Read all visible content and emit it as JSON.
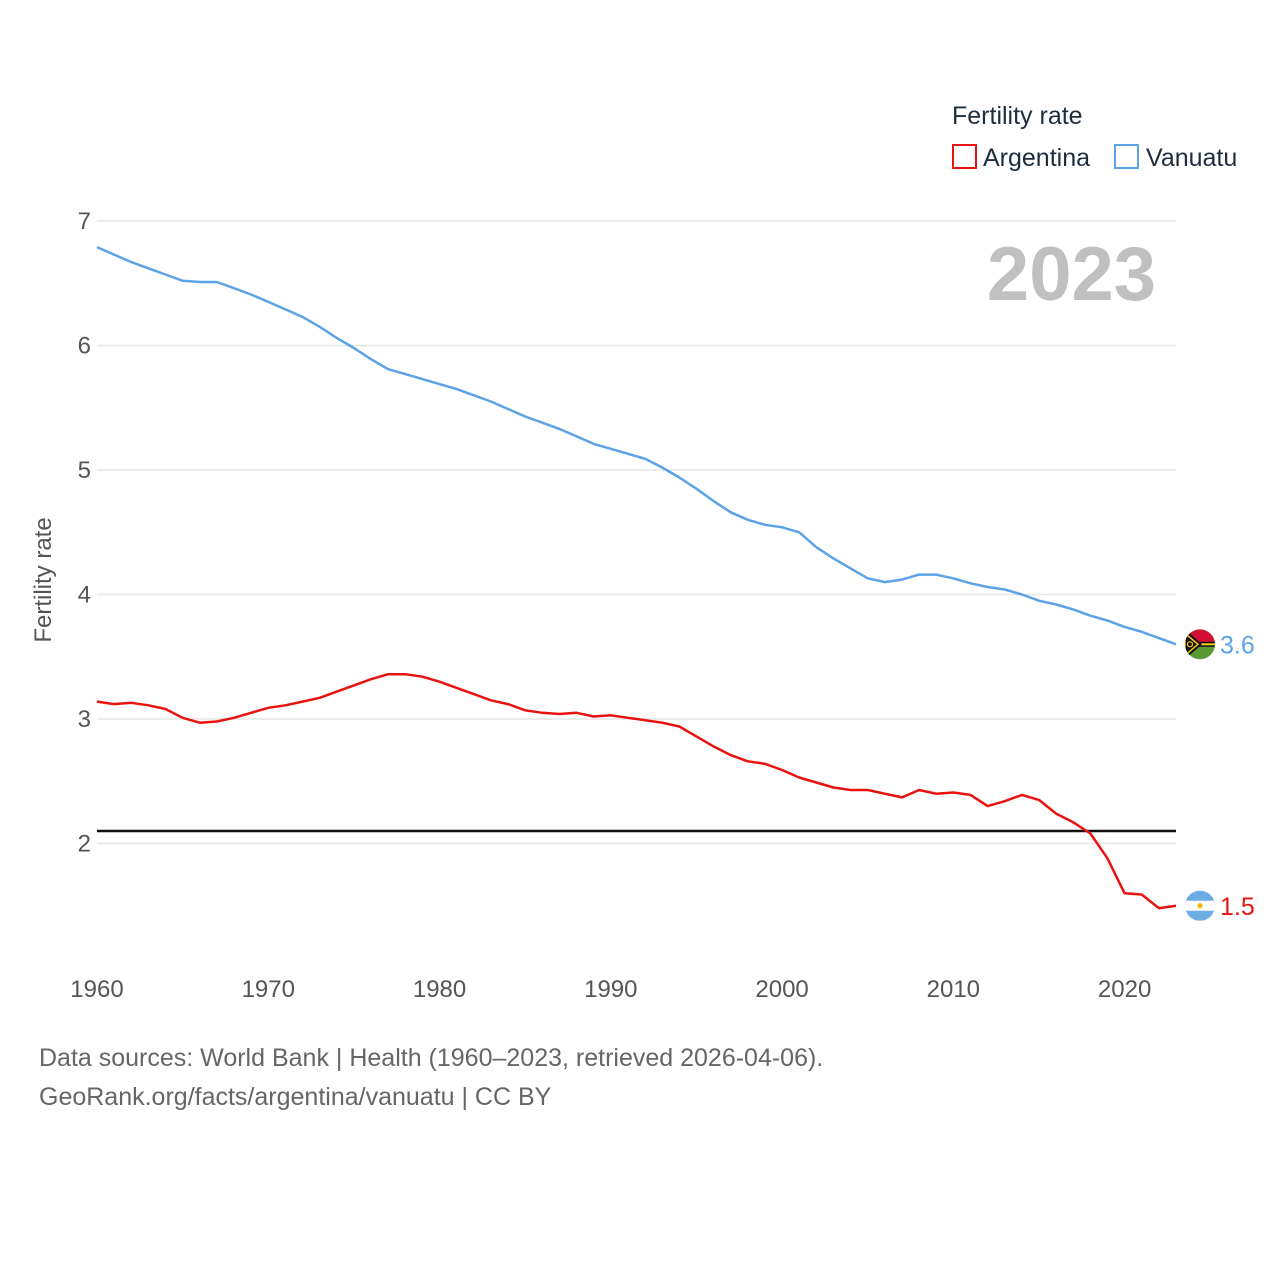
{
  "chart_data": {
    "type": "line",
    "title": "",
    "current_year_label": "2023",
    "ylabel": "Fertility rate",
    "xlabel": "",
    "xlim": [
      1960,
      2023
    ],
    "ylim": [
      1.0,
      7.0
    ],
    "yticks": [
      2,
      3,
      4,
      5,
      6,
      7
    ],
    "xticks": [
      1960,
      1970,
      1980,
      1990,
      2000,
      2010,
      2020
    ],
    "reference_line": 2.1,
    "legend": {
      "title": "Fertility rate",
      "position": "top-right"
    },
    "x": [
      1960,
      1961,
      1962,
      1963,
      1964,
      1965,
      1966,
      1967,
      1968,
      1969,
      1970,
      1971,
      1972,
      1973,
      1974,
      1975,
      1976,
      1977,
      1978,
      1979,
      1980,
      1981,
      1982,
      1983,
      1984,
      1985,
      1986,
      1987,
      1988,
      1989,
      1990,
      1991,
      1992,
      1993,
      1994,
      1995,
      1996,
      1997,
      1998,
      1999,
      2000,
      2001,
      2002,
      2003,
      2004,
      2005,
      2006,
      2007,
      2008,
      2009,
      2010,
      2011,
      2012,
      2013,
      2014,
      2015,
      2016,
      2017,
      2018,
      2019,
      2020,
      2021,
      2022,
      2023
    ],
    "series": [
      {
        "name": "Argentina",
        "color": "#e8130f",
        "end_label": "1.5",
        "values": [
          3.14,
          3.12,
          3.13,
          3.11,
          3.08,
          3.01,
          2.97,
          2.98,
          3.01,
          3.05,
          3.09,
          3.11,
          3.14,
          3.17,
          3.22,
          3.27,
          3.32,
          3.36,
          3.36,
          3.34,
          3.3,
          3.25,
          3.2,
          3.15,
          3.12,
          3.07,
          3.05,
          3.04,
          3.05,
          3.02,
          3.03,
          3.01,
          2.99,
          2.97,
          2.94,
          2.86,
          2.78,
          2.71,
          2.66,
          2.64,
          2.59,
          2.53,
          2.49,
          2.45,
          2.43,
          2.43,
          2.4,
          2.37,
          2.43,
          2.4,
          2.41,
          2.39,
          2.3,
          2.34,
          2.39,
          2.35,
          2.24,
          2.17,
          2.08,
          1.88,
          1.6,
          1.59,
          1.48,
          1.5
        ]
      },
      {
        "name": "Vanuatu",
        "color": "#5ba3e6",
        "end_label": "3.6",
        "values": [
          6.79,
          6.73,
          6.67,
          6.62,
          6.57,
          6.52,
          6.51,
          6.51,
          6.46,
          6.41,
          6.35,
          6.29,
          6.23,
          6.15,
          6.06,
          5.98,
          5.89,
          5.81,
          5.77,
          5.73,
          5.69,
          5.65,
          5.6,
          5.55,
          5.49,
          5.43,
          5.38,
          5.33,
          5.27,
          5.21,
          5.17,
          5.13,
          5.09,
          5.02,
          4.94,
          4.85,
          4.75,
          4.66,
          4.6,
          4.56,
          4.54,
          4.5,
          4.38,
          4.29,
          4.21,
          4.13,
          4.1,
          4.12,
          4.16,
          4.16,
          4.13,
          4.09,
          4.06,
          4.04,
          4.0,
          3.95,
          3.92,
          3.88,
          3.83,
          3.79,
          3.74,
          3.7,
          3.65,
          3.6
        ]
      }
    ]
  },
  "footer": {
    "line1": "Data sources: World Bank | Health (1960–2023, retrieved 2026-04-06).",
    "line2": "GeoRank.org/facts/argentina/vanuatu | CC BY"
  }
}
